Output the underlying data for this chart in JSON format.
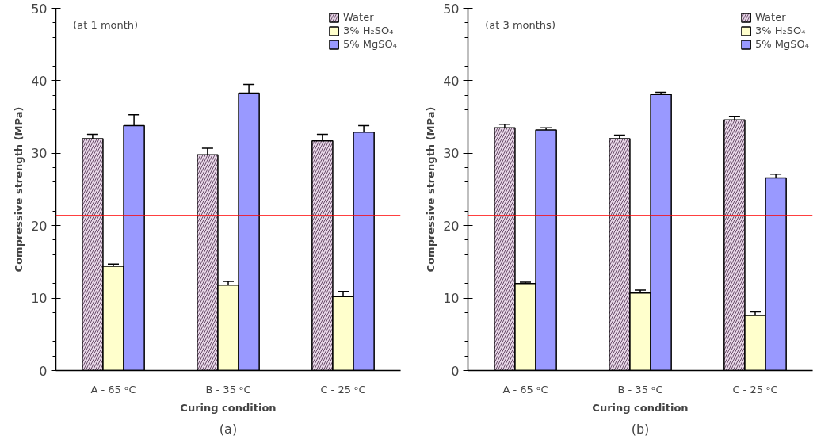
{
  "chart_data": [
    {
      "type": "bar",
      "annotations": [
        "(at 1 month)",
        "(a)"
      ],
      "xlabel": "Curing condition",
      "ylabel": "Compressive strength (MPa)",
      "categories": [
        "A - 65 ᵒC",
        "B - 35 ᵒC",
        "C - 25 ᵒC"
      ],
      "series": [
        {
          "name": "Water",
          "color": "#e6d5e6",
          "values": [
            32.0,
            29.8,
            31.7
          ],
          "errors": [
            0.6,
            0.9,
            0.9
          ]
        },
        {
          "name": "3% H₂SO₄",
          "color": "#ffffcc",
          "values": [
            14.4,
            11.8,
            10.2
          ],
          "errors": [
            0.3,
            0.5,
            0.7
          ]
        },
        {
          "name": "5% MgSO₄",
          "color": "#9999ff",
          "values": [
            33.8,
            38.3,
            32.9
          ],
          "errors": [
            1.5,
            1.2,
            0.9
          ]
        }
      ],
      "ylim": [
        0,
        50
      ],
      "yticks": [
        0,
        10,
        20,
        30,
        40,
        50
      ],
      "grid": false,
      "legend": "top right",
      "ref_lines": [
        {
          "axis": "y",
          "value": 21.4,
          "color": "#ff0000"
        }
      ]
    },
    {
      "type": "bar",
      "annotations": [
        "(at 3 months)",
        "(b)"
      ],
      "xlabel": "Curing condition",
      "ylabel": "Compressive strength (MPa)",
      "categories": [
        "A - 65 ᵒC",
        "B - 35 ᵒC",
        "C - 25 ᵒC"
      ],
      "series": [
        {
          "name": "Water",
          "color": "#e6d5e6",
          "values": [
            33.5,
            32.0,
            34.6
          ],
          "errors": [
            0.5,
            0.5,
            0.5
          ]
        },
        {
          "name": "3% H₂SO₄",
          "color": "#ffffcc",
          "values": [
            12.0,
            10.7,
            7.6
          ],
          "errors": [
            0.2,
            0.4,
            0.5
          ]
        },
        {
          "name": "5% MgSO₄",
          "color": "#9999ff",
          "values": [
            33.2,
            38.1,
            26.6
          ],
          "errors": [
            0.3,
            0.3,
            0.5
          ]
        }
      ],
      "ylim": [
        0,
        50
      ],
      "yticks": [
        0,
        10,
        20,
        30,
        40,
        50
      ],
      "grid": false,
      "legend": "top right",
      "ref_lines": [
        {
          "axis": "y",
          "value": 21.4,
          "color": "#ff0000"
        }
      ]
    }
  ]
}
